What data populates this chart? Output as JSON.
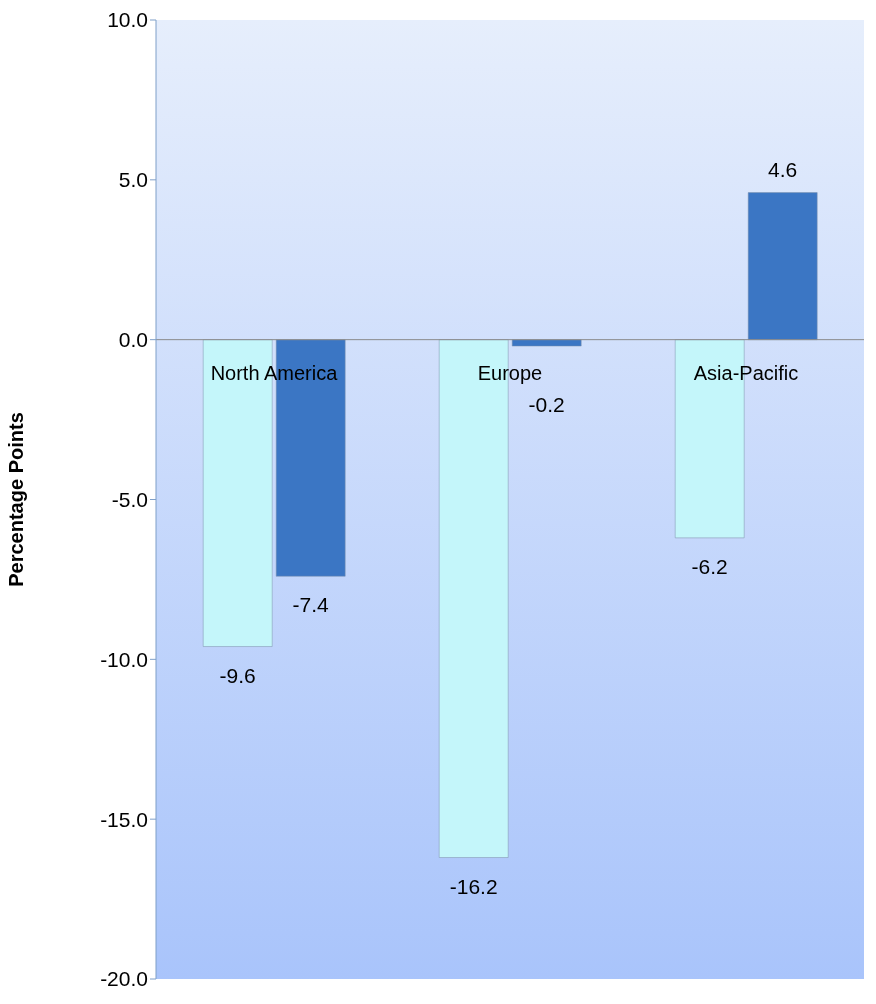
{
  "chart_data": {
    "type": "bar",
    "ylabel": "Percentage Points",
    "categories": [
      "North America",
      "Europe",
      "Asia-Pacific"
    ],
    "series": [
      {
        "color": "#c4f6fa",
        "values": [
          -9.6,
          -16.2,
          -6.2
        ]
      },
      {
        "color": "#3b76c4",
        "values": [
          -7.4,
          -0.2,
          4.6
        ]
      }
    ],
    "ylim": [
      -20,
      10
    ],
    "yticks": [
      {
        "value": 10,
        "label": "10.0"
      },
      {
        "value": 5,
        "label": "5.0"
      },
      {
        "value": 0,
        "label": "0.0"
      },
      {
        "value": -5,
        "label": "-5.0"
      },
      {
        "value": -10,
        "label": "-10.0"
      },
      {
        "value": -15,
        "label": "-15.0"
      },
      {
        "value": -20,
        "label": "-20.0"
      }
    ],
    "data_labels": true,
    "grid": false,
    "legend": false
  }
}
